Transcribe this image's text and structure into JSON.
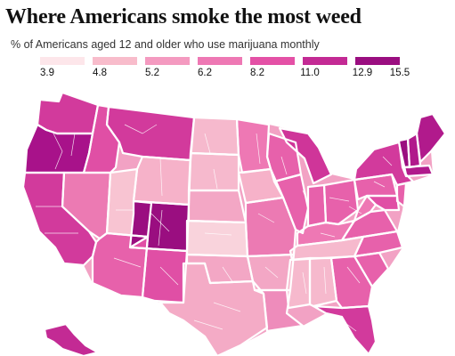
{
  "title": "Where Americans smoke the most weed",
  "subtitle": "% of Americans aged 12 and older who use marijuana monthly",
  "legend": {
    "ticks": [
      "3.9",
      "4.8",
      "5.2",
      "6.2",
      "8.2",
      "11.0",
      "12.9",
      "15.5"
    ],
    "colors": [
      "#fde6ea",
      "#f8bccb",
      "#f49ac0",
      "#ee78b4",
      "#e451a6",
      "#c32a94",
      "#9a0e80"
    ]
  },
  "map": {
    "land_color": "#f2a2c4",
    "states": [
      {
        "name": "Washington",
        "color": "#d23a9c"
      },
      {
        "name": "Oregon",
        "color": "#a8128a"
      },
      {
        "name": "California",
        "color": "#d23a9c"
      },
      {
        "name": "Nevada",
        "color": "#ec7ab3"
      },
      {
        "name": "Idaho",
        "color": "#e04fa5"
      },
      {
        "name": "Montana",
        "color": "#d23a9c"
      },
      {
        "name": "Wyoming",
        "color": "#f6b2c9"
      },
      {
        "name": "Utah",
        "color": "#f8c4d2"
      },
      {
        "name": "Arizona",
        "color": "#e761ab"
      },
      {
        "name": "Colorado",
        "color": "#9a0e80"
      },
      {
        "name": "New Mexico",
        "color": "#e04fa5"
      },
      {
        "name": "North Dakota",
        "color": "#f6b9cd"
      },
      {
        "name": "South Dakota",
        "color": "#f6b9cd"
      },
      {
        "name": "Nebraska",
        "color": "#f3a7c5"
      },
      {
        "name": "Kansas",
        "color": "#f9d3dc"
      },
      {
        "name": "Oklahoma",
        "color": "#f3a7c5"
      },
      {
        "name": "Texas",
        "color": "#f4abc6"
      },
      {
        "name": "Minnesota",
        "color": "#ee78b4"
      },
      {
        "name": "Iowa",
        "color": "#f6b2c9"
      },
      {
        "name": "Missouri",
        "color": "#ec7ab3"
      },
      {
        "name": "Arkansas",
        "color": "#f3a7c5"
      },
      {
        "name": "Louisiana",
        "color": "#ee8cbb"
      },
      {
        "name": "Wisconsin",
        "color": "#e761ab"
      },
      {
        "name": "Illinois",
        "color": "#e761ab"
      },
      {
        "name": "Michigan",
        "color": "#cf3599"
      },
      {
        "name": "Indiana",
        "color": "#e761ab"
      },
      {
        "name": "Ohio",
        "color": "#e761ab"
      },
      {
        "name": "Kentucky",
        "color": "#ee78b4"
      },
      {
        "name": "Tennessee",
        "color": "#f6b9cd"
      },
      {
        "name": "Mississippi",
        "color": "#f6b9cd"
      },
      {
        "name": "Alabama",
        "color": "#f6b9cd"
      },
      {
        "name": "Georgia",
        "color": "#e761ab"
      },
      {
        "name": "Florida",
        "color": "#d23a9c"
      },
      {
        "name": "South Carolina",
        "color": "#e761ab"
      },
      {
        "name": "North Carolina",
        "color": "#e761ab"
      },
      {
        "name": "Virginia",
        "color": "#e761ab"
      },
      {
        "name": "West Virginia",
        "color": "#ee78b4"
      },
      {
        "name": "Pennsylvania",
        "color": "#e761ab"
      },
      {
        "name": "New York",
        "color": "#d23a9c"
      },
      {
        "name": "Maryland",
        "color": "#e04fa5"
      },
      {
        "name": "New Jersey",
        "color": "#e761ab"
      },
      {
        "name": "Vermont",
        "color": "#9a0e80"
      },
      {
        "name": "New Hampshire",
        "color": "#b11a8c"
      },
      {
        "name": "Maine",
        "color": "#b11a8c"
      },
      {
        "name": "Massachusetts",
        "color": "#b11a8c"
      },
      {
        "name": "Alaska",
        "color": "#c32a94"
      }
    ]
  }
}
